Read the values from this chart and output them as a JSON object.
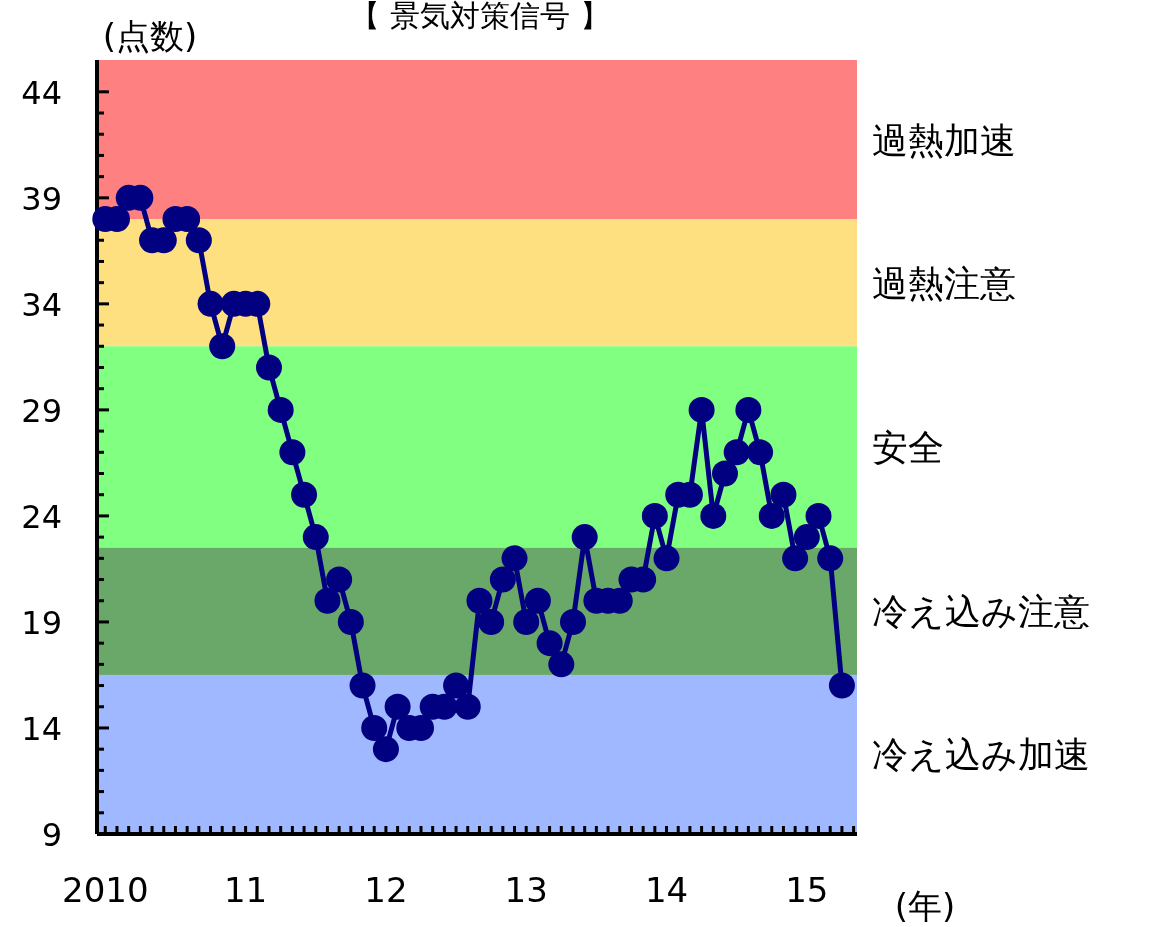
{
  "chart_data": {
    "type": "line",
    "title": "【 景気対策信号 】",
    "ylabel": "(点数)",
    "xlabel": "(年)",
    "x": [
      "2010-01",
      "2010-02",
      "2010-03",
      "2010-04",
      "2010-05",
      "2010-06",
      "2010-07",
      "2010-08",
      "2010-09",
      "2010-10",
      "2010-11",
      "2010-12",
      "2011-01",
      "2011-02",
      "2011-03",
      "2011-04",
      "2011-05",
      "2011-06",
      "2011-07",
      "2011-08",
      "2011-09",
      "2011-10",
      "2011-11",
      "2011-12",
      "2012-01",
      "2012-02",
      "2012-03",
      "2012-04",
      "2012-05",
      "2012-06",
      "2012-07",
      "2012-08",
      "2012-09",
      "2012-10",
      "2012-11",
      "2012-12",
      "2013-01",
      "2013-02",
      "2013-03",
      "2013-04",
      "2013-05",
      "2013-06",
      "2013-07",
      "2013-08",
      "2013-09",
      "2013-10",
      "2013-11",
      "2013-12",
      "2014-01",
      "2014-02",
      "2014-03",
      "2014-04",
      "2014-05",
      "2014-06",
      "2014-07",
      "2014-08",
      "2014-09",
      "2014-10",
      "2014-11",
      "2014-12",
      "2015-01",
      "2015-02",
      "2015-03",
      "2015-04"
    ],
    "series": [
      {
        "color": "#000080",
        "values": [
          38,
          38,
          39,
          39,
          37,
          37,
          38,
          38,
          37,
          34,
          32,
          34,
          34,
          34,
          31,
          29,
          27,
          25,
          23,
          20,
          21,
          19,
          16,
          14,
          13,
          15,
          14,
          14,
          15,
          15,
          16,
          15,
          20,
          19,
          21,
          22,
          19,
          20,
          18,
          17,
          19,
          23,
          20,
          20,
          20,
          21,
          21,
          24,
          22,
          25,
          25,
          29,
          24,
          26,
          27,
          29,
          27,
          24,
          25,
          22,
          23,
          24,
          22,
          16
        ]
      }
    ],
    "marker": "circle",
    "line_style": "solid",
    "grid": false,
    "xlim": [
      "2009-12-10",
      "2015-05-10"
    ],
    "ylim": [
      9,
      45.5
    ],
    "xticks": [
      {
        "value": "2010-01",
        "label": "2010"
      },
      {
        "value": "2011-01",
        "label": "11"
      },
      {
        "value": "2012-01",
        "label": "12"
      },
      {
        "value": "2013-01",
        "label": "13"
      },
      {
        "value": "2014-01",
        "label": "14"
      },
      {
        "value": "2015-01",
        "label": "15"
      }
    ],
    "yticks": [
      9,
      14,
      19,
      24,
      29,
      34,
      39,
      44
    ],
    "bands": [
      {
        "axis": "y",
        "from": 38,
        "to": 45.5,
        "label": "過熱加速",
        "color": "#ff8080"
      },
      {
        "axis": "y",
        "from": 32,
        "to": 38,
        "label": "過熱注意",
        "color": "#ffe080"
      },
      {
        "axis": "y",
        "from": 22.5,
        "to": 32,
        "label": "安全",
        "color": "#80ff80"
      },
      {
        "axis": "y",
        "from": 16.5,
        "to": 22.5,
        "label": "冷え込み注意",
        "color": "#6aa86a"
      },
      {
        "axis": "y",
        "from": 9,
        "to": 16.5,
        "label": "冷え込み加速",
        "color": "#a0b8ff"
      }
    ]
  }
}
